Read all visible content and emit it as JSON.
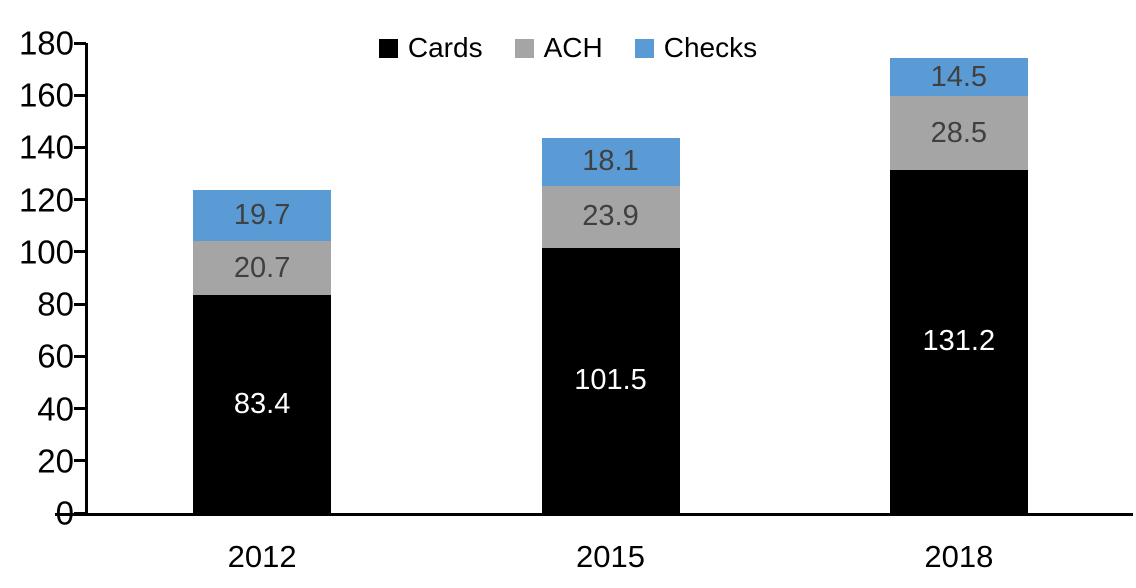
{
  "chart_data": {
    "type": "bar",
    "stacked": true,
    "title": "",
    "categories": [
      "2012",
      "2015",
      "2018"
    ],
    "series": [
      {
        "name": "Cards",
        "color": "#000000",
        "label_color": "#ffffff",
        "values": [
          83.4,
          101.5,
          131.2
        ]
      },
      {
        "name": "ACH",
        "color": "#a5a5a5",
        "label_color": "#404040",
        "values": [
          20.7,
          23.9,
          28.5
        ]
      },
      {
        "name": "Checks",
        "color": "#5b9bd5",
        "label_color": "#404040",
        "values": [
          19.7,
          18.1,
          14.5
        ]
      }
    ],
    "totals": [
      123.8,
      143.5,
      174.2
    ],
    "ylim": [
      0,
      180
    ],
    "yticks": [
      0,
      20,
      40,
      60,
      80,
      100,
      120,
      140,
      160,
      180
    ],
    "legend_position": "top",
    "legend_labels": [
      "Cards",
      "ACH",
      "Checks"
    ],
    "grid": false,
    "axis_color": "#000000",
    "background_color": "#ffffff"
  }
}
